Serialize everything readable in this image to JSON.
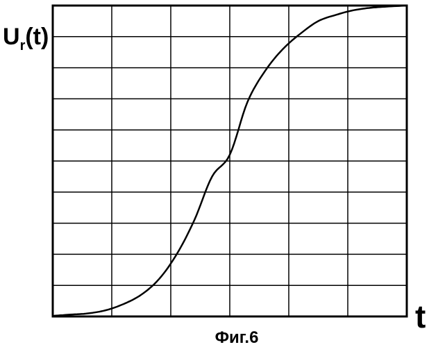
{
  "chart_data": {
    "type": "line",
    "title": "",
    "ylabel_main": "U",
    "ylabel_sub": "r",
    "ylabel_tail": "(t)",
    "xlabel": "t",
    "caption": "Фиг.6",
    "grid": true,
    "xlim": [
      0,
      6
    ],
    "ylim": [
      0,
      10
    ],
    "x_divisions": 6,
    "y_divisions": 10,
    "series": [
      {
        "x": [
          0,
          0.3,
          0.6,
          0.9,
          1.2,
          1.5,
          1.8,
          2.1,
          2.4,
          2.7,
          3.0,
          3.3,
          3.6,
          3.9,
          4.2,
          4.5,
          4.8,
          5.1,
          5.4,
          5.7,
          6.0
        ],
        "y": [
          0.02,
          0.06,
          0.1,
          0.2,
          0.4,
          0.7,
          1.2,
          2.0,
          3.1,
          4.5,
          5.2,
          6.9,
          7.9,
          8.6,
          9.1,
          9.5,
          9.7,
          9.85,
          9.93,
          9.97,
          10.0
        ]
      }
    ],
    "line_color": "#000000",
    "grid_color": "#000000"
  }
}
